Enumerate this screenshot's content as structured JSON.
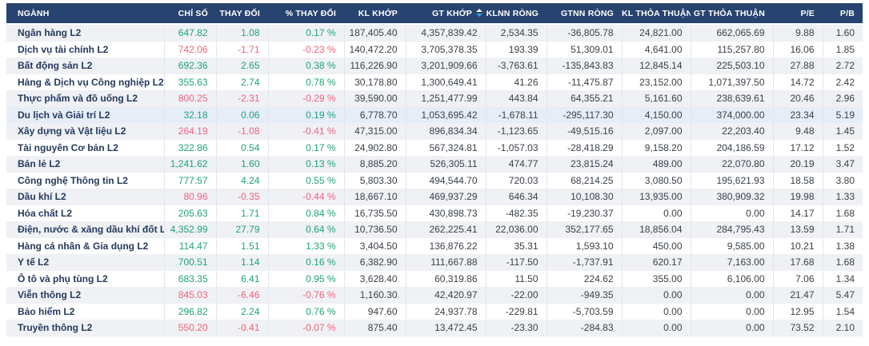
{
  "colors": {
    "header_bg": "#27436f",
    "header_text": "#ffffff",
    "row_bg": "#ffffff",
    "row_alt_bg": "#eff1f5",
    "row_highlight_bg": "#e6edf7",
    "sector_text": "#253a5e",
    "number_text": "#3a4149",
    "up": "#1fa37d",
    "down": "#f2637e",
    "separator": "#e2e6ec",
    "sort_active_arrow": "#3d9fe8"
  },
  "icons": {
    "sort_icon": "sort-arrows-up-down"
  },
  "table": {
    "columns": [
      {
        "key": "name",
        "label": "NGÀNH",
        "align": "left"
      },
      {
        "key": "index",
        "label": "CHỈ SỐ",
        "align": "right",
        "colored": true
      },
      {
        "key": "change",
        "label": "THAY ĐỔI",
        "align": "right",
        "colored": true
      },
      {
        "key": "pct",
        "label": "% THAY ĐỔI",
        "align": "right",
        "colored": true
      },
      {
        "key": "kl_khop",
        "label": "KL KHỚP",
        "align": "right"
      },
      {
        "key": "gt_khop",
        "label": "GT KHỚP",
        "align": "right",
        "sorted": "desc"
      },
      {
        "key": "klnn_rong",
        "label": "KLNN RÒNG",
        "align": "right"
      },
      {
        "key": "gtnn_rong",
        "label": "GTNN RÒNG",
        "align": "right"
      },
      {
        "key": "kl_thoa_thuan",
        "label": "KL THỎA THUẬN",
        "align": "right"
      },
      {
        "key": "gt_thoa_thuan",
        "label": "GT THỎA THUẬN",
        "align": "right"
      },
      {
        "key": "pe",
        "label": "P/E",
        "align": "right"
      },
      {
        "key": "pb",
        "label": "P/B",
        "align": "right"
      }
    ],
    "rows": [
      {
        "name": "Ngân hàng L2",
        "trend": "up",
        "index": "647.82",
        "change": "1.08",
        "pct": "0.17 %",
        "kl_khop": "187,405.40",
        "gt_khop": "4,357,839.42",
        "klnn_rong": "2,534.35",
        "gtnn_rong": "-36,805.78",
        "kl_thoa_thuan": "24,821.00",
        "gt_thoa_thuan": "662,065.69",
        "pe": "9.88",
        "pb": "1.60"
      },
      {
        "name": "Dịch vụ tài chính L2",
        "trend": "down",
        "index": "742.06",
        "change": "-1.71",
        "pct": "-0.23 %",
        "kl_khop": "140,472.20",
        "gt_khop": "3,705,378.35",
        "klnn_rong": "193.39",
        "gtnn_rong": "51,309.01",
        "kl_thoa_thuan": "4,641.00",
        "gt_thoa_thuan": "115,257.80",
        "pe": "16.06",
        "pb": "1.85"
      },
      {
        "name": "Bất động sản L2",
        "trend": "up",
        "index": "692.36",
        "change": "2.65",
        "pct": "0.38 %",
        "kl_khop": "116,226.90",
        "gt_khop": "3,201,909.66",
        "klnn_rong": "-3,763.61",
        "gtnn_rong": "-135,843.83",
        "kl_thoa_thuan": "12,845.14",
        "gt_thoa_thuan": "225,503.10",
        "pe": "27.88",
        "pb": "2.72"
      },
      {
        "name": "Hàng & Dịch vụ Công nghiệp L2",
        "trend": "up",
        "index": "355.63",
        "change": "2.74",
        "pct": "0.78 %",
        "kl_khop": "30,178.80",
        "gt_khop": "1,300,649.41",
        "klnn_rong": "41.26",
        "gtnn_rong": "-11,475.87",
        "kl_thoa_thuan": "23,152.00",
        "gt_thoa_thuan": "1,071,397.50",
        "pe": "14.72",
        "pb": "2.42"
      },
      {
        "name": "Thực phẩm và đồ uống L2",
        "trend": "down",
        "index": "800.25",
        "change": "-2.31",
        "pct": "-0.29 %",
        "kl_khop": "39,590.00",
        "gt_khop": "1,251,477.99",
        "klnn_rong": "443.84",
        "gtnn_rong": "64,355.21",
        "kl_thoa_thuan": "5,161.60",
        "gt_thoa_thuan": "238,639.61",
        "pe": "20.46",
        "pb": "2.96"
      },
      {
        "name": "Du lịch và Giải trí L2",
        "trend": "up",
        "highlighted": true,
        "index": "32.18",
        "change": "0.06",
        "pct": "0.19 %",
        "kl_khop": "6,778.70",
        "gt_khop": "1,053,695.42",
        "klnn_rong": "-1,678.11",
        "gtnn_rong": "-295,117.30",
        "kl_thoa_thuan": "4,150.00",
        "gt_thoa_thuan": "374,000.00",
        "pe": "23.34",
        "pb": "5.19"
      },
      {
        "name": "Xây dựng và Vật liệu L2",
        "trend": "down",
        "index": "264.19",
        "change": "-1.08",
        "pct": "-0.41 %",
        "kl_khop": "47,315.00",
        "gt_khop": "896,834.34",
        "klnn_rong": "-1,123.65",
        "gtnn_rong": "-49,515.16",
        "kl_thoa_thuan": "2,097.00",
        "gt_thoa_thuan": "22,203.40",
        "pe": "9.48",
        "pb": "1.45"
      },
      {
        "name": "Tài nguyên Cơ bản L2",
        "trend": "up",
        "index": "322.86",
        "change": "0.54",
        "pct": "0.17 %",
        "kl_khop": "24,902.80",
        "gt_khop": "567,324.81",
        "klnn_rong": "-1,057.03",
        "gtnn_rong": "-28,418.29",
        "kl_thoa_thuan": "9,158.20",
        "gt_thoa_thuan": "204,186.59",
        "pe": "17.12",
        "pb": "1.52"
      },
      {
        "name": "Bán lẻ L2",
        "trend": "up",
        "index": "1,241.62",
        "change": "1.60",
        "pct": "0.13 %",
        "kl_khop": "8,885.20",
        "gt_khop": "526,305.11",
        "klnn_rong": "474.77",
        "gtnn_rong": "23,815.24",
        "kl_thoa_thuan": "489.00",
        "gt_thoa_thuan": "22,070.80",
        "pe": "20.19",
        "pb": "3.47"
      },
      {
        "name": "Công nghệ Thông tin L2",
        "trend": "up",
        "index": "777.57",
        "change": "4.24",
        "pct": "0.55 %",
        "kl_khop": "5,803.30",
        "gt_khop": "494,544.70",
        "klnn_rong": "720.03",
        "gtnn_rong": "68,214.25",
        "kl_thoa_thuan": "3,080.50",
        "gt_thoa_thuan": "195,621.93",
        "pe": "18.58",
        "pb": "3.80"
      },
      {
        "name": "Dầu khí L2",
        "trend": "down",
        "index": "80.96",
        "change": "-0.35",
        "pct": "-0.44 %",
        "kl_khop": "18,667.10",
        "gt_khop": "469,937.29",
        "klnn_rong": "646.34",
        "gtnn_rong": "10,108.30",
        "kl_thoa_thuan": "13,935.00",
        "gt_thoa_thuan": "380,909.32",
        "pe": "19.98",
        "pb": "1.33"
      },
      {
        "name": "Hóa chất L2",
        "trend": "up",
        "index": "205.63",
        "change": "1.71",
        "pct": "0.84 %",
        "kl_khop": "16,735.50",
        "gt_khop": "430,898.73",
        "klnn_rong": "-482.35",
        "gtnn_rong": "-19,230.37",
        "kl_thoa_thuan": "0.00",
        "gt_thoa_thuan": "0.00",
        "pe": "14.17",
        "pb": "1.68"
      },
      {
        "name": "Điện, nước & xăng dầu khí đốt L2",
        "trend": "up",
        "index": "4,352.99",
        "change": "27.79",
        "pct": "0.64 %",
        "kl_khop": "10,736.50",
        "gt_khop": "262,225.41",
        "klnn_rong": "22,036.00",
        "gtnn_rong": "352,177.65",
        "kl_thoa_thuan": "18,856.04",
        "gt_thoa_thuan": "284,795.43",
        "pe": "13.59",
        "pb": "1.71"
      },
      {
        "name": "Hàng cá nhân & Gia dụng L2",
        "trend": "up",
        "index": "114.47",
        "change": "1.51",
        "pct": "1.33 %",
        "kl_khop": "3,404.50",
        "gt_khop": "136,876.22",
        "klnn_rong": "35.31",
        "gtnn_rong": "1,593.10",
        "kl_thoa_thuan": "450.00",
        "gt_thoa_thuan": "9,585.00",
        "pe": "10.21",
        "pb": "1.38"
      },
      {
        "name": "Y tế L2",
        "trend": "up",
        "index": "700.51",
        "change": "1.14",
        "pct": "0.16 %",
        "kl_khop": "6,382.90",
        "gt_khop": "111,667.88",
        "klnn_rong": "-117.50",
        "gtnn_rong": "-1,737.91",
        "kl_thoa_thuan": "620.17",
        "gt_thoa_thuan": "7,163.00",
        "pe": "17.68",
        "pb": "1.68"
      },
      {
        "name": "Ô tô và phụ tùng L2",
        "trend": "up",
        "index": "683.35",
        "change": "6.41",
        "pct": "0.95 %",
        "kl_khop": "3,628.40",
        "gt_khop": "60,319.86",
        "klnn_rong": "11.50",
        "gtnn_rong": "224.62",
        "kl_thoa_thuan": "355.00",
        "gt_thoa_thuan": "6,106.00",
        "pe": "7.06",
        "pb": "1.34"
      },
      {
        "name": "Viễn thông L2",
        "trend": "down",
        "index": "845.03",
        "change": "-6.46",
        "pct": "-0.76 %",
        "kl_khop": "1,160.30",
        "gt_khop": "42,420.97",
        "klnn_rong": "-22.00",
        "gtnn_rong": "-949.35",
        "kl_thoa_thuan": "0.00",
        "gt_thoa_thuan": "0.00",
        "pe": "21.47",
        "pb": "5.47"
      },
      {
        "name": "Bảo hiểm L2",
        "trend": "up",
        "index": "296.82",
        "change": "2.24",
        "pct": "0.76 %",
        "kl_khop": "947.60",
        "gt_khop": "24,937.78",
        "klnn_rong": "-229.81",
        "gtnn_rong": "-5,703.59",
        "kl_thoa_thuan": "0.00",
        "gt_thoa_thuan": "0.00",
        "pe": "12.95",
        "pb": "1.54"
      },
      {
        "name": "Truyền thông L2",
        "trend": "down",
        "index": "550.20",
        "change": "-0.41",
        "pct": "-0.07 %",
        "kl_khop": "875.40",
        "gt_khop": "13,472.45",
        "klnn_rong": "-23.30",
        "gtnn_rong": "-284.83",
        "kl_thoa_thuan": "0.00",
        "gt_thoa_thuan": "0.00",
        "pe": "73.52",
        "pb": "2.10"
      }
    ]
  }
}
